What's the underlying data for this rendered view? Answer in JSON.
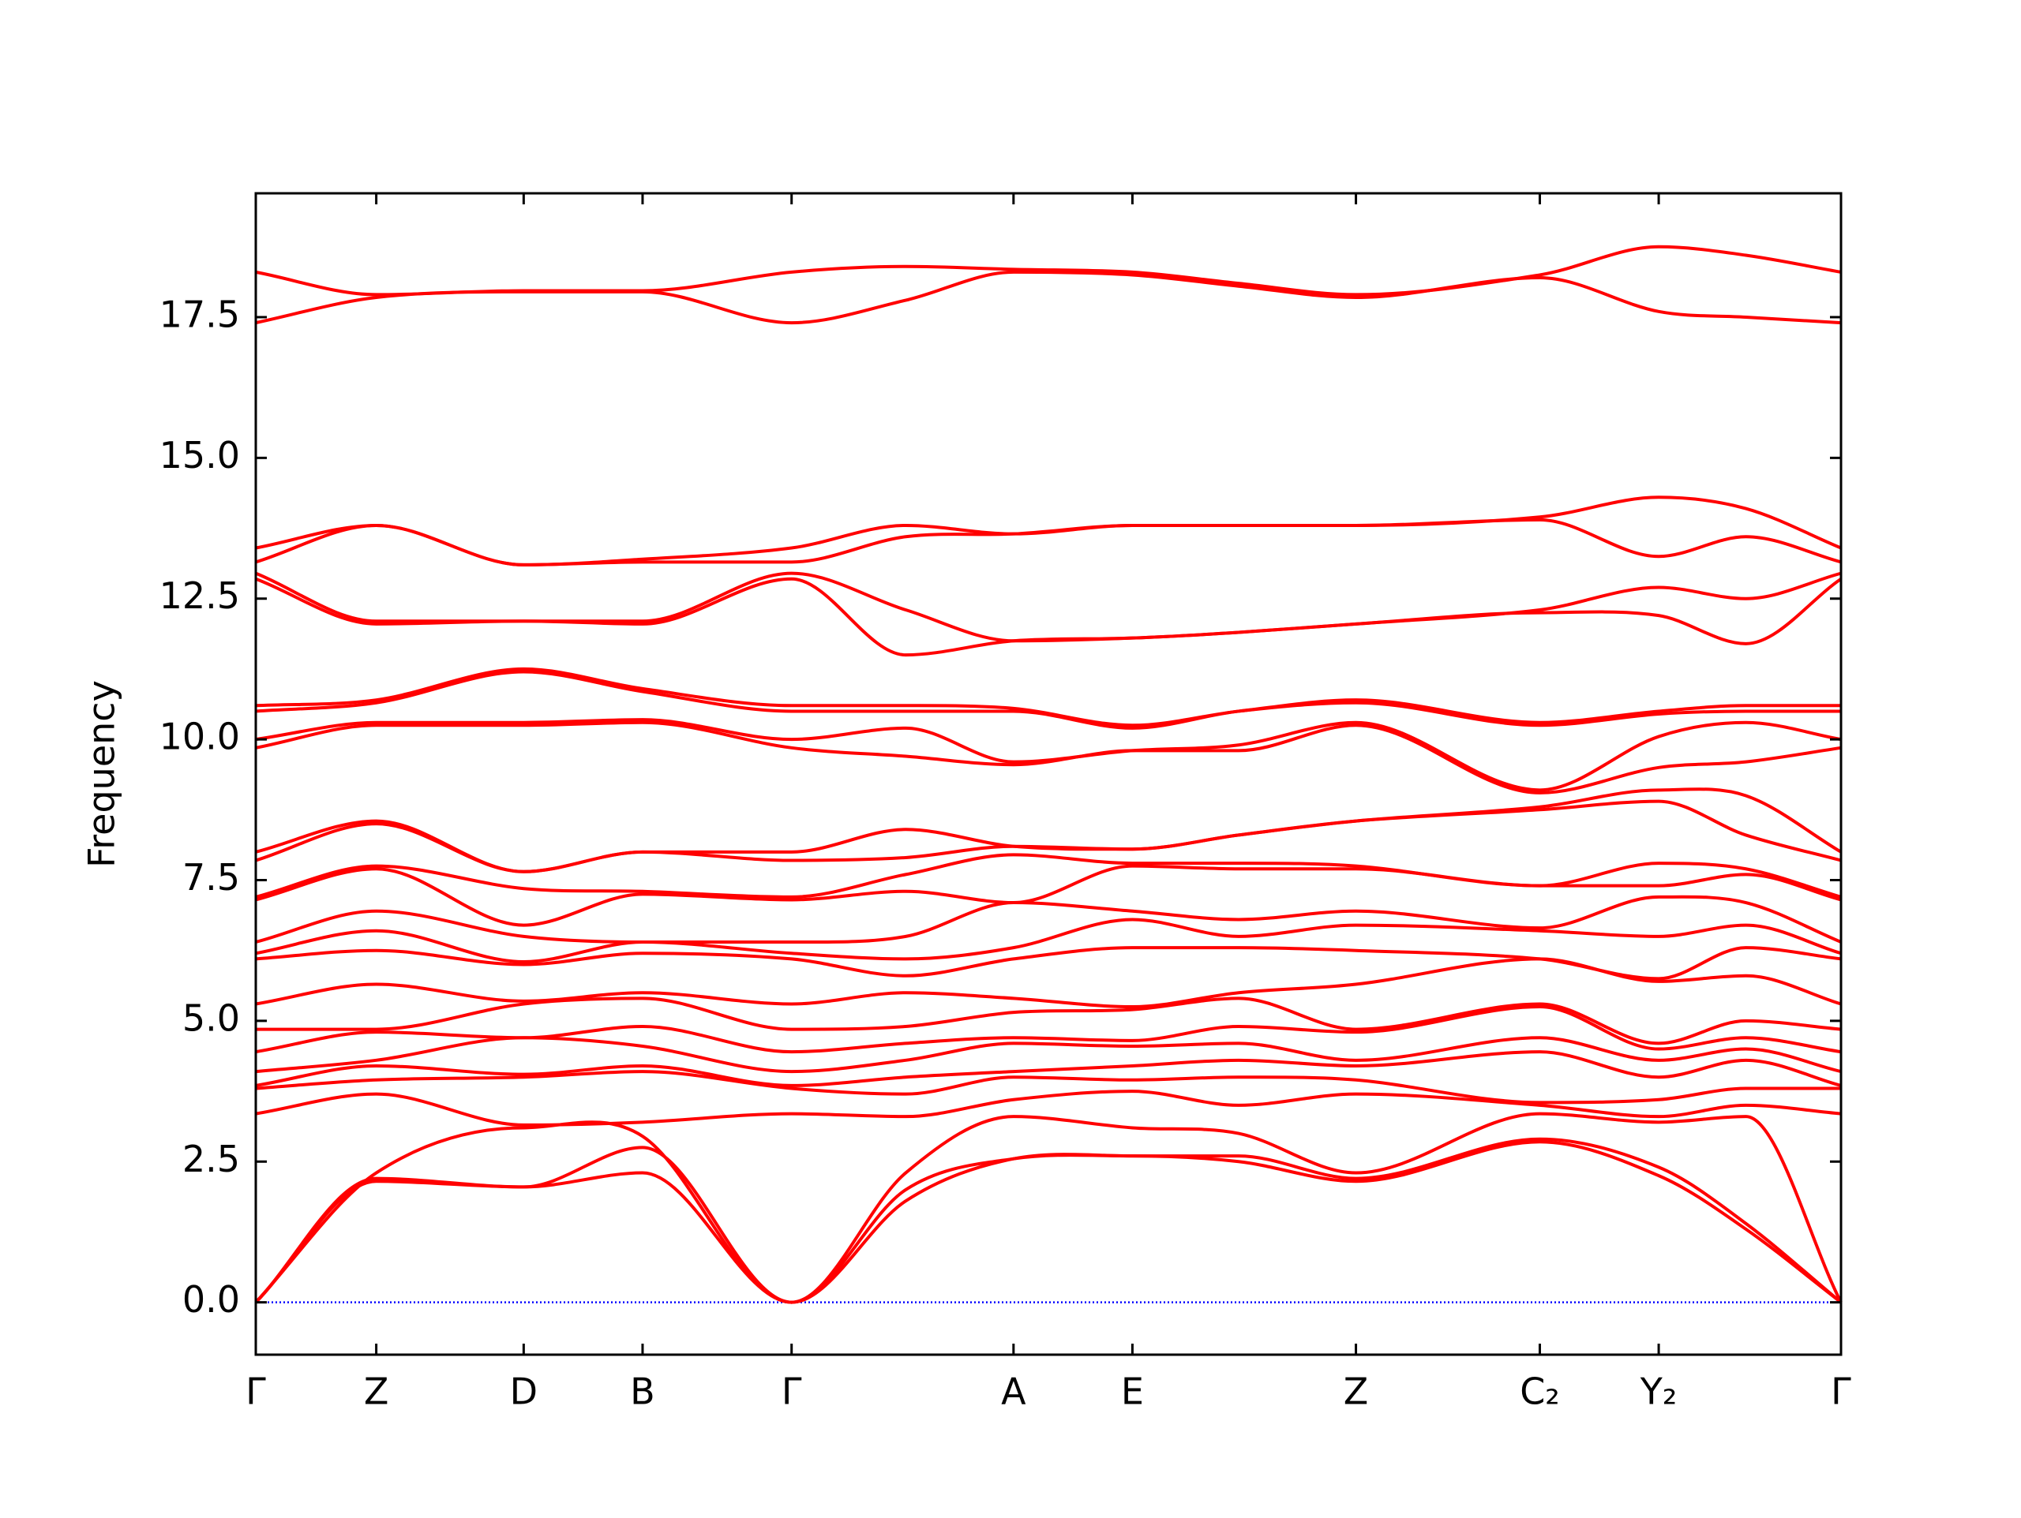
{
  "chart_data": {
    "type": "band_structure",
    "ylabel": "Frequency",
    "color": "#ff0000",
    "hline": 0,
    "hline_color": "#0000ff",
    "x": [
      0,
      0.076,
      0.169,
      0.244,
      0.338,
      0.41,
      0.478,
      0.553,
      0.62,
      0.694,
      0.81,
      0.885,
      0.94,
      1
    ],
    "xlim": [
      0,
      1
    ],
    "xticks": [
      {
        "value": 0,
        "label": "Γ"
      },
      {
        "value": 0.076,
        "label": "Z"
      },
      {
        "value": 0.169,
        "label": "D"
      },
      {
        "value": 0.244,
        "label": "B"
      },
      {
        "value": 0.338,
        "label": "Γ"
      },
      {
        "value": 0.478,
        "label": "A"
      },
      {
        "value": 0.553,
        "label": "E"
      },
      {
        "value": 0.694,
        "label": "Z"
      },
      {
        "value": 0.81,
        "label": "C₂"
      },
      {
        "value": 0.885,
        "label": "Y₂"
      },
      {
        "value": 1,
        "label": "Γ"
      }
    ],
    "ylim": [
      -0.93,
      19.7
    ],
    "yticks": [
      {
        "value": 0,
        "label": "0.0"
      },
      2.5,
      {
        "value": 5,
        "label": "5.0"
      },
      7.5,
      {
        "value": 10,
        "label": "10.0"
      },
      12.5,
      {
        "value": 15,
        "label": "15.0"
      },
      17.5
    ],
    "series": [
      {
        "values": [
          0,
          2.15,
          2.05,
          2.3,
          0,
          1.8,
          2.55,
          2.6,
          2.5,
          2.15,
          2.85,
          2.25,
          1.3,
          0
        ]
      },
      {
        "values": [
          0,
          2.2,
          2.05,
          2.75,
          0,
          2.0,
          2.55,
          2.6,
          2.6,
          2.2,
          2.9,
          2.4,
          1.4,
          0
        ]
      },
      {
        "values": [
          0,
          2.3,
          3.1,
          2.95,
          0,
          2.3,
          3.3,
          3.1,
          3.0,
          2.3,
          3.35,
          3.2,
          3.3,
          0
        ]
      },
      {
        "values": [
          3.35,
          3.7,
          3.15,
          3.2,
          3.35,
          3.3,
          3.6,
          3.75,
          3.5,
          3.7,
          3.5,
          3.3,
          3.5,
          3.35
        ]
      },
      {
        "values": [
          3.8,
          3.95,
          4.0,
          4.1,
          3.8,
          3.7,
          4.0,
          3.95,
          4.0,
          3.95,
          3.55,
          3.6,
          3.8,
          3.8
        ]
      },
      {
        "values": [
          3.85,
          4.2,
          4.05,
          4.2,
          3.85,
          4.0,
          4.1,
          4.2,
          4.3,
          4.2,
          4.45,
          4.0,
          4.3,
          3.85
        ]
      },
      {
        "values": [
          4.1,
          4.3,
          4.7,
          4.55,
          4.1,
          4.3,
          4.6,
          4.55,
          4.6,
          4.3,
          4.7,
          4.3,
          4.5,
          4.1
        ]
      },
      {
        "values": [
          4.45,
          4.8,
          4.7,
          4.9,
          4.45,
          4.6,
          4.7,
          4.65,
          4.9,
          4.8,
          5.25,
          4.5,
          4.7,
          4.45
        ]
      },
      {
        "values": [
          4.85,
          4.85,
          5.3,
          5.4,
          4.85,
          4.9,
          5.15,
          5.2,
          5.4,
          4.85,
          5.3,
          4.6,
          5.0,
          4.85
        ]
      },
      {
        "values": [
          5.3,
          5.65,
          5.35,
          5.5,
          5.3,
          5.5,
          5.4,
          5.25,
          5.5,
          5.65,
          6.1,
          5.7,
          5.8,
          5.3
        ]
      },
      {
        "values": [
          6.1,
          6.25,
          6.0,
          6.2,
          6.1,
          5.8,
          6.1,
          6.3,
          6.3,
          6.25,
          6.1,
          5.75,
          6.3,
          6.1
        ]
      },
      {
        "values": [
          6.2,
          6.6,
          6.05,
          6.4,
          6.2,
          6.1,
          6.3,
          6.8,
          6.5,
          6.7,
          6.6,
          6.5,
          6.7,
          6.2
        ]
      },
      {
        "values": [
          6.4,
          6.95,
          6.5,
          6.4,
          6.4,
          6.5,
          7.1,
          6.95,
          6.8,
          6.95,
          6.65,
          7.2,
          7.1,
          6.4
        ]
      },
      {
        "values": [
          7.15,
          7.7,
          6.7,
          7.25,
          7.15,
          7.3,
          7.1,
          7.75,
          7.7,
          7.7,
          7.4,
          7.4,
          7.6,
          7.15
        ]
      },
      {
        "values": [
          7.2,
          7.75,
          7.35,
          7.3,
          7.2,
          7.6,
          7.95,
          7.8,
          7.8,
          7.75,
          7.4,
          7.8,
          7.7,
          7.2
        ]
      },
      {
        "values": [
          7.85,
          8.5,
          7.65,
          8.0,
          7.85,
          7.9,
          8.1,
          8.05,
          8.3,
          8.55,
          8.75,
          8.9,
          8.3,
          7.85
        ]
      },
      {
        "values": [
          8.0,
          8.55,
          7.65,
          8.0,
          8.0,
          8.4,
          8.1,
          8.05,
          8.3,
          8.55,
          8.8,
          9.1,
          9.0,
          8.0
        ]
      },
      {
        "values": [
          9.85,
          10.25,
          10.25,
          10.3,
          9.85,
          9.7,
          9.55,
          9.8,
          9.8,
          10.25,
          9.05,
          9.5,
          9.6,
          9.85
        ]
      },
      {
        "values": [
          10.0,
          10.3,
          10.3,
          10.35,
          10.0,
          10.2,
          9.6,
          9.8,
          9.9,
          10.3,
          9.1,
          10.05,
          10.3,
          10.0
        ]
      },
      {
        "values": [
          10.5,
          10.65,
          11.2,
          10.85,
          10.5,
          10.5,
          10.5,
          10.2,
          10.5,
          10.65,
          10.25,
          10.45,
          10.5,
          10.5
        ]
      },
      {
        "values": [
          10.6,
          10.7,
          11.25,
          10.9,
          10.6,
          10.6,
          10.55,
          10.25,
          10.5,
          10.7,
          10.3,
          10.5,
          10.6,
          10.6
        ]
      },
      {
        "values": [
          12.85,
          12.05,
          12.1,
          12.05,
          12.85,
          11.5,
          11.75,
          11.8,
          11.9,
          12.05,
          12.25,
          12.2,
          11.7,
          12.85
        ]
      },
      {
        "values": [
          12.95,
          12.1,
          12.1,
          12.1,
          12.95,
          12.3,
          11.75,
          11.8,
          11.9,
          12.05,
          12.3,
          12.7,
          12.5,
          12.95
        ]
      },
      {
        "values": [
          13.15,
          13.8,
          13.1,
          13.15,
          13.15,
          13.6,
          13.65,
          13.8,
          13.8,
          13.8,
          13.9,
          13.25,
          13.6,
          13.15
        ]
      },
      {
        "values": [
          13.4,
          13.8,
          13.1,
          13.2,
          13.4,
          13.8,
          13.65,
          13.8,
          13.8,
          13.8,
          13.95,
          14.3,
          14.1,
          13.4
        ]
      },
      {
        "values": [
          17.4,
          17.85,
          17.95,
          17.95,
          17.4,
          17.8,
          18.3,
          18.25,
          18.05,
          17.85,
          18.2,
          17.6,
          17.5,
          17.4
        ]
      },
      {
        "values": [
          18.3,
          17.9,
          17.97,
          17.97,
          18.3,
          18.4,
          18.35,
          18.3,
          18.1,
          17.9,
          18.25,
          18.75,
          18.6,
          18.3
        ]
      }
    ]
  }
}
